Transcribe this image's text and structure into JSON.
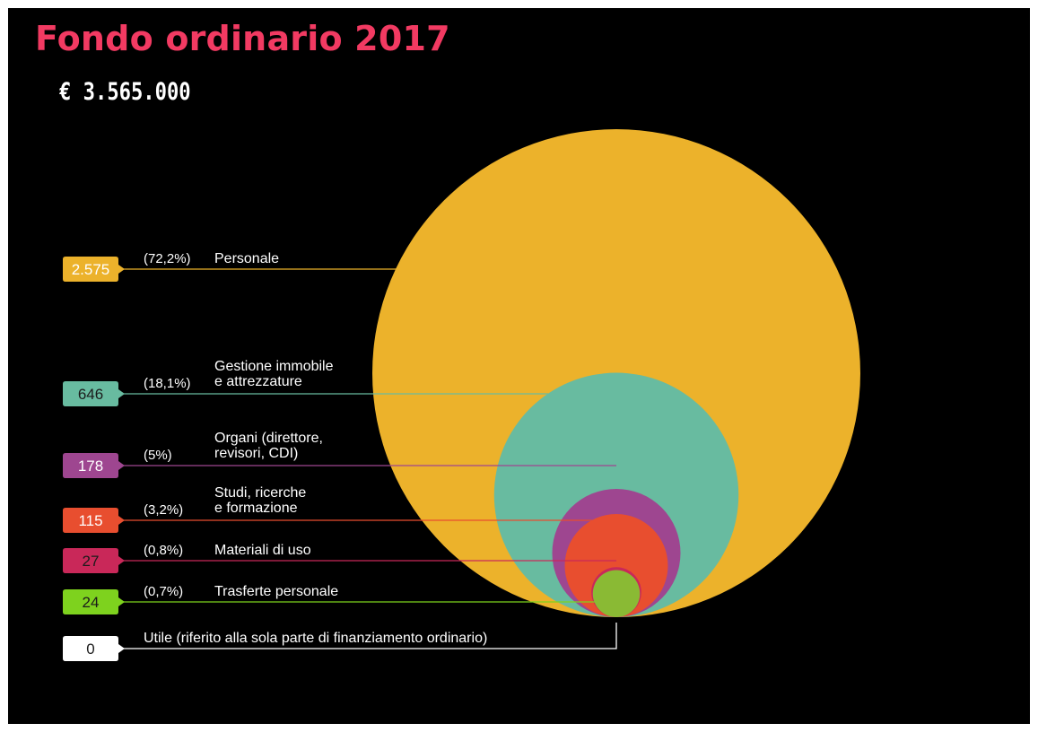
{
  "header": {
    "title": "Fondo ordinario 2017",
    "total": "€ 3.565.000"
  },
  "colors": {
    "background": "#000000",
    "title": "#f23a62",
    "text": "#ffffff"
  },
  "chart_data": {
    "type": "nested-bubble",
    "title": "Fondo ordinario 2017",
    "subtitle": "€ 3.565.000",
    "items": [
      {
        "label": "Personale",
        "value": 2575,
        "value_label": "2.575",
        "percent_label": "(72,2%)",
        "color": "#ecb22b",
        "label_color": "#ecb22b",
        "value_text_color": "#ffffff"
      },
      {
        "label": "Gestione immobile e attrezzature",
        "label_lines": [
          "Gestione immobile",
          "e attrezzature"
        ],
        "value": 646,
        "value_label": "646",
        "percent_label": "(18,1%)",
        "color": "#68bba0",
        "label_color": "#68bba0",
        "value_text_color": "#1b1b1b"
      },
      {
        "label": "Organi (direttore, revisori, CDI)",
        "label_lines": [
          "Organi (direttore,",
          "revisori, CDI)"
        ],
        "value": 178,
        "value_label": "178",
        "percent_label": "(5%)",
        "color": "#9e4690",
        "label_color": "#9e4690",
        "value_text_color": "#ffffff"
      },
      {
        "label": "Studi, ricerche e formazione",
        "label_lines": [
          "Studi, ricerche",
          "e formazione"
        ],
        "value": 115,
        "value_label": "115",
        "percent_label": "(3,2%)",
        "color": "#e84e2f",
        "label_color": "#e84e2f",
        "value_text_color": "#ffffff"
      },
      {
        "label": "Materiali di uso",
        "value": 27,
        "value_label": "27",
        "percent_label": "(0,8%)",
        "color": "#c92859",
        "label_color": "#c92859",
        "value_text_color": "#1b1b1b"
      },
      {
        "label": "Trasferte personale",
        "value": 24,
        "value_label": "24",
        "percent_label": "(0,7%)",
        "color": "#8aba34",
        "label_color": "#7ed21e",
        "value_text_color": "#1b1b1b"
      },
      {
        "label": "Utile (riferito alla sola parte di finanziamento ordinario)",
        "value": 0,
        "value_label": "0",
        "percent_label": "",
        "color": "#ffffff",
        "label_color": "#ffffff",
        "value_text_color": "#1b1b1b"
      }
    ]
  }
}
